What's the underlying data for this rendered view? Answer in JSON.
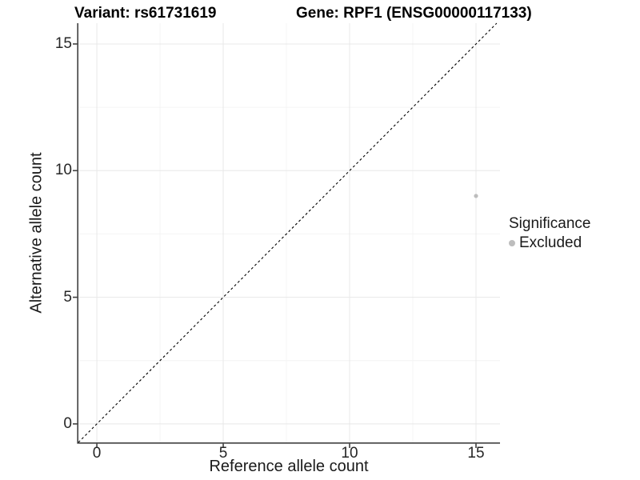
{
  "header": {
    "variant_title": "Variant: rs61731619",
    "gene_title": "Gene: RPF1 (ENSG00000117133)"
  },
  "chart_data": {
    "type": "scatter",
    "xlabel": "Reference allele count",
    "ylabel": "Alternative allele count",
    "x_ticks": [
      0,
      5,
      10,
      15
    ],
    "y_ticks": [
      0,
      5,
      10,
      15
    ],
    "x_minor_ticks": [
      2.5,
      7.5,
      12.5
    ],
    "y_minor_ticks": [
      2.5,
      7.5,
      12.5
    ],
    "xlim": [
      -0.73,
      15.95
    ],
    "ylim": [
      -0.73,
      15.82
    ],
    "grid": true,
    "points": [
      {
        "x": 15,
        "y": 9,
        "significance": "Excluded",
        "color": "#bdbdbd"
      }
    ],
    "reference_line": {
      "type": "abline",
      "slope": 1,
      "intercept": 0,
      "style": "dashed",
      "color": "#000000"
    },
    "legend": {
      "title": "Significance",
      "position": "right",
      "items": [
        {
          "label": "Excluded",
          "color": "#bdbdbd"
        }
      ]
    }
  },
  "colors": {
    "background": "#ffffff",
    "grid_major": "#e8e8e8",
    "grid_minor": "#f4f4f4",
    "axis_line": "#404040",
    "point": "#bdbdbd",
    "text": "#1a1a1a"
  }
}
